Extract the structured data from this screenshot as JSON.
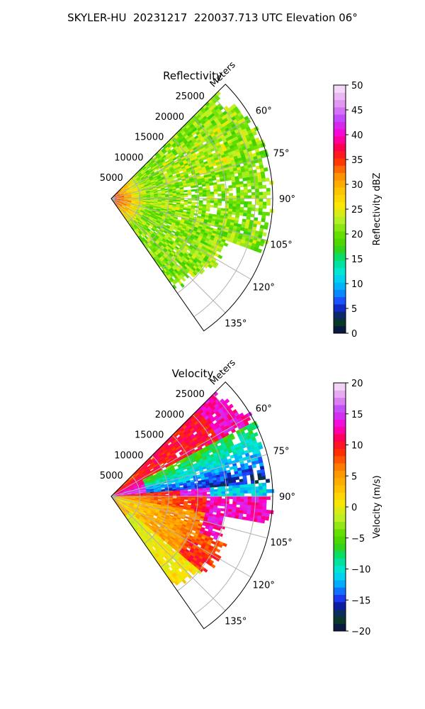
{
  "figure_title": "SKYLER-HU  20231217  220037.713 UTC Elevation 06°",
  "chart_data": [
    {
      "type": "heatmap",
      "subtype": "radar-ppi-sector",
      "title": "Reflectivity",
      "range_label": "Meters",
      "range_ticks": [
        5000,
        10000,
        15000,
        20000,
        25000
      ],
      "range_max": 28000,
      "azimuth_range": [
        45,
        145
      ],
      "azimuth_ticks": [
        "60°",
        "75°",
        "90°",
        "105°",
        "120°",
        "135°"
      ],
      "colorbar": {
        "label": "Reflectivity dBZ",
        "min": 0,
        "max": 50,
        "ticks": [
          "0",
          "5",
          "10",
          "15",
          "20",
          "25",
          "30",
          "35",
          "40",
          "45",
          "50"
        ],
        "stops": [
          {
            "v": 0,
            "c": "#0a0a4a"
          },
          {
            "v": 2.5,
            "c": "#0b3d26"
          },
          {
            "v": 4.5,
            "c": "#0a1a9a"
          },
          {
            "v": 6,
            "c": "#1f3cff"
          },
          {
            "v": 9,
            "c": "#00a8ff"
          },
          {
            "v": 12,
            "c": "#00e6e6"
          },
          {
            "v": 15,
            "c": "#00e07a"
          },
          {
            "v": 17.5,
            "c": "#3fd000"
          },
          {
            "v": 20,
            "c": "#66e000"
          },
          {
            "v": 23,
            "c": "#b8f028"
          },
          {
            "v": 26,
            "c": "#ffe600"
          },
          {
            "v": 29,
            "c": "#ffc000"
          },
          {
            "v": 32,
            "c": "#ff8a00"
          },
          {
            "v": 35,
            "c": "#ff2a00"
          },
          {
            "v": 37.5,
            "c": "#ff0050"
          },
          {
            "v": 40,
            "c": "#ff00d0"
          },
          {
            "v": 43,
            "c": "#c040ff"
          },
          {
            "v": 46,
            "c": "#e090f0"
          },
          {
            "v": 50,
            "c": "#f8e8f8"
          }
        ]
      },
      "field_description": "mostly 18-26 dBZ, strongest near radar (30-40 dBZ)"
    },
    {
      "type": "heatmap",
      "subtype": "radar-ppi-sector",
      "title": "Velocity",
      "range_label": "Meters",
      "range_ticks": [
        5000,
        10000,
        15000,
        20000,
        25000
      ],
      "range_max": 28000,
      "azimuth_range": [
        45,
        145
      ],
      "azimuth_ticks": [
        "60°",
        "75°",
        "90°",
        "105°",
        "120°",
        "135°"
      ],
      "colorbar": {
        "label": "Velocity (m/s)",
        "min": -20,
        "max": 20,
        "ticks": [
          "−20",
          "−15",
          "−10",
          "−5",
          "0",
          "5",
          "10",
          "15",
          "20"
        ],
        "stops": [
          {
            "v": -20,
            "c": "#0a0a4a"
          },
          {
            "v": -18,
            "c": "#0b3d26"
          },
          {
            "v": -16,
            "c": "#0a1a9a"
          },
          {
            "v": -14.5,
            "c": "#1f3cff"
          },
          {
            "v": -12.5,
            "c": "#00a8ff"
          },
          {
            "v": -10.5,
            "c": "#00e6e6"
          },
          {
            "v": -8,
            "c": "#00e07a"
          },
          {
            "v": -6,
            "c": "#3fd000"
          },
          {
            "v": -4,
            "c": "#66e000"
          },
          {
            "v": -2,
            "c": "#b8f028"
          },
          {
            "v": 1,
            "c": "#ffe600"
          },
          {
            "v": 3,
            "c": "#ffc000"
          },
          {
            "v": 6,
            "c": "#ff8a00"
          },
          {
            "v": 9,
            "c": "#ff2a00"
          },
          {
            "v": 11,
            "c": "#ff0050"
          },
          {
            "v": 13,
            "c": "#ff00d0"
          },
          {
            "v": 15.5,
            "c": "#c040ff"
          },
          {
            "v": 17.5,
            "c": "#e090f0"
          },
          {
            "v": 20,
            "c": "#f8e8f8"
          }
        ]
      },
      "field_description": "negative (approaching) north of ~85°, positive (receding) 90-130°, near-zero at far south"
    }
  ]
}
